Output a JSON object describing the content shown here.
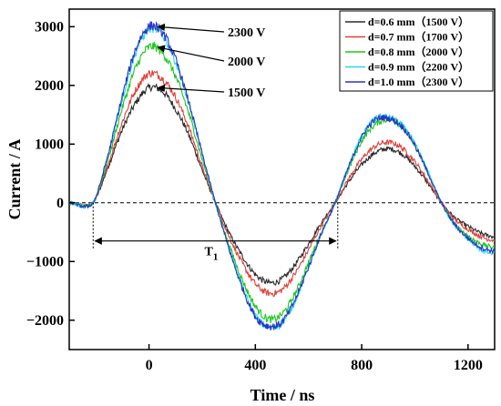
{
  "chart_data": {
    "type": "line",
    "xlabel": "Time / ns",
    "ylabel": "Current  / A",
    "xlim": [
      -300,
      1300
    ],
    "ylim": [
      -2500,
      3300
    ],
    "x_ticks": [
      0,
      400,
      800,
      1200
    ],
    "y_ticks": [
      -2000,
      -1000,
      0,
      1000,
      2000,
      3000
    ],
    "legend": "top-right",
    "series": [
      {
        "name": "d=0.6 mm（1500 V）",
        "color": "#2b2b2b",
        "x": [
          -300,
          -210,
          -150,
          -100,
          -50,
          0,
          50,
          100,
          150,
          200,
          250,
          300,
          350,
          400,
          450,
          500,
          550,
          600,
          650,
          700,
          750,
          800,
          850,
          900,
          950,
          1000,
          1050,
          1100,
          1150,
          1200,
          1250,
          1300
        ],
        "y": [
          0,
          0,
          650,
          1250,
          1700,
          1960,
          1900,
          1600,
          1150,
          560,
          0,
          -500,
          -900,
          -1220,
          -1360,
          -1300,
          -1050,
          -700,
          -330,
          0,
          350,
          650,
          850,
          920,
          840,
          620,
          330,
          0,
          -250,
          -400,
          -520,
          -580
        ]
      },
      {
        "name": "d=0.7 mm（1700 V）",
        "color": "#e0403a",
        "x": [
          -300,
          -210,
          -150,
          -100,
          -50,
          0,
          50,
          100,
          150,
          200,
          250,
          300,
          350,
          400,
          450,
          500,
          550,
          600,
          650,
          700,
          750,
          800,
          850,
          900,
          950,
          1000,
          1050,
          1100,
          1150,
          1200,
          1250,
          1300
        ],
        "y": [
          0,
          0,
          700,
          1380,
          1920,
          2200,
          2120,
          1800,
          1280,
          620,
          0,
          -560,
          -1020,
          -1380,
          -1540,
          -1480,
          -1200,
          -800,
          -380,
          0,
          400,
          740,
          960,
          1030,
          940,
          700,
          370,
          0,
          -280,
          -450,
          -580,
          -640
        ]
      },
      {
        "name": "d=0.8 mm（2000 V）",
        "color": "#1ec81e",
        "x": [
          -300,
          -210,
          -150,
          -100,
          -50,
          0,
          50,
          100,
          150,
          200,
          250,
          300,
          350,
          400,
          450,
          500,
          550,
          600,
          650,
          700,
          750,
          800,
          850,
          900,
          950,
          1000,
          1050,
          1100,
          1150,
          1200,
          1250,
          1300
        ],
        "y": [
          0,
          0,
          800,
          1620,
          2300,
          2650,
          2560,
          2150,
          1520,
          740,
          0,
          -700,
          -1300,
          -1760,
          -1980,
          -1900,
          -1540,
          -1020,
          -480,
          0,
          560,
          1050,
          1330,
          1420,
          1300,
          970,
          500,
          0,
          -360,
          -560,
          -700,
          -760
        ]
      },
      {
        "name": "d=0.9 mm（2200 V）",
        "color": "#25d8ee",
        "x": [
          -300,
          -210,
          -150,
          -100,
          -50,
          0,
          50,
          100,
          150,
          200,
          250,
          300,
          350,
          400,
          450,
          500,
          550,
          600,
          650,
          700,
          750,
          800,
          850,
          900,
          950,
          1000,
          1050,
          1100,
          1150,
          1200,
          1250,
          1300
        ],
        "y": [
          0,
          0,
          860,
          1780,
          2560,
          2960,
          2860,
          2400,
          1680,
          820,
          0,
          -760,
          -1420,
          -1920,
          -2120,
          -2040,
          -1660,
          -1100,
          -520,
          0,
          600,
          1130,
          1430,
          1460,
          1330,
          1000,
          520,
          0,
          -380,
          -620,
          -800,
          -870
        ]
      },
      {
        "name": "d=1.0 mm（2300 V）",
        "color": "#2a33c8",
        "x": [
          -300,
          -210,
          -150,
          -100,
          -50,
          0,
          50,
          100,
          150,
          200,
          250,
          300,
          350,
          400,
          450,
          500,
          550,
          600,
          650,
          700,
          750,
          800,
          850,
          900,
          950,
          1000,
          1050,
          1100,
          1150,
          1200,
          1250,
          1300
        ],
        "y": [
          0,
          0,
          880,
          1820,
          2620,
          3000,
          2900,
          2440,
          1710,
          840,
          0,
          -770,
          -1430,
          -1930,
          -2100,
          -2030,
          -1650,
          -1090,
          -510,
          0,
          600,
          1120,
          1410,
          1440,
          1310,
          980,
          500,
          0,
          -370,
          -600,
          -760,
          -820
        ]
      }
    ],
    "annotations": [
      {
        "text": "2300 V",
        "x": 20,
        "y": 3000
      },
      {
        "text": "2000 V",
        "x": 20,
        "y": 2650
      },
      {
        "text": "1500 V",
        "x": 20,
        "y": 1960
      },
      {
        "text": "T",
        "sub": "1",
        "x1": -210,
        "x2": 710,
        "y": -650
      }
    ]
  }
}
